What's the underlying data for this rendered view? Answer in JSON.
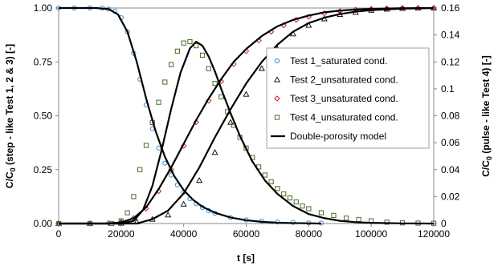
{
  "chart_data": {
    "type": "scatter",
    "xlabel": "t [s]",
    "ylabel_left": "C/C0 (step - like Test 1, 2 & 3) [-]",
    "ylabel_right": "C/C0 (pulse - like Test 4) [-]",
    "xlim": [
      0,
      120000
    ],
    "ylim_left": [
      0,
      1
    ],
    "ylim_right": [
      0,
      0.16
    ],
    "x_ticks": [
      "0",
      "20000",
      "40000",
      "60000",
      "80000",
      "100000",
      "120000"
    ],
    "y_left_ticks": [
      "0.00",
      "0.25",
      "0.50",
      "0.75",
      "1.00"
    ],
    "y_right_ticks": [
      "0",
      "0.02",
      "0.04",
      "0.06",
      "0.08",
      "0.1",
      "0.12",
      "0.14",
      "0.16"
    ],
    "grid": false,
    "legend_position": "right",
    "series": [
      {
        "name": "Test 1_saturated cond.",
        "axis": "left",
        "marker": "circle",
        "color": "#3a8fd6",
        "points": [
          [
            0,
            1.0
          ],
          [
            5000,
            1.0
          ],
          [
            10000,
            1.0
          ],
          [
            14000,
            1.0
          ],
          [
            16000,
            0.995
          ],
          [
            18000,
            0.985
          ],
          [
            20000,
            0.955
          ],
          [
            22000,
            0.89
          ],
          [
            24000,
            0.79
          ],
          [
            26000,
            0.67
          ],
          [
            28000,
            0.55
          ],
          [
            30000,
            0.44
          ],
          [
            32000,
            0.35
          ],
          [
            34000,
            0.28
          ],
          [
            36000,
            0.225
          ],
          [
            38000,
            0.18
          ],
          [
            40000,
            0.145
          ],
          [
            42000,
            0.115
          ],
          [
            44000,
            0.092
          ],
          [
            46000,
            0.074
          ],
          [
            48000,
            0.06
          ],
          [
            50000,
            0.048
          ],
          [
            55000,
            0.028
          ],
          [
            60000,
            0.017
          ],
          [
            65000,
            0.011
          ],
          [
            70000,
            0.007
          ],
          [
            75000,
            0.005
          ],
          [
            80000,
            0.003
          ],
          [
            84000,
            0.002
          ]
        ]
      },
      {
        "name": "Test 2_unsaturated cond.",
        "axis": "left",
        "marker": "triangle",
        "color": "#000000",
        "points": [
          [
            0,
            0.0
          ],
          [
            10000,
            0.0
          ],
          [
            20000,
            0.002
          ],
          [
            25000,
            0.008
          ],
          [
            30000,
            0.02
          ],
          [
            35000,
            0.04
          ],
          [
            40000,
            0.09
          ],
          [
            45000,
            0.2
          ],
          [
            50000,
            0.33
          ],
          [
            55000,
            0.47
          ],
          [
            60000,
            0.6
          ],
          [
            65000,
            0.72
          ],
          [
            70000,
            0.81
          ],
          [
            75000,
            0.88
          ],
          [
            80000,
            0.92
          ],
          [
            85000,
            0.95
          ],
          [
            90000,
            0.97
          ],
          [
            95000,
            0.98
          ],
          [
            100000,
            0.99
          ],
          [
            105000,
            0.995
          ],
          [
            110000,
            0.998
          ],
          [
            115000,
            1.0
          ],
          [
            120000,
            1.0
          ]
        ]
      },
      {
        "name": "Test 3_unsaturated cond.",
        "axis": "left",
        "marker": "diamond",
        "color": "#c0202a",
        "points": [
          [
            0,
            0.0
          ],
          [
            10000,
            0.0
          ],
          [
            16000,
            0.002
          ],
          [
            20000,
            0.008
          ],
          [
            24000,
            0.025
          ],
          [
            28000,
            0.07
          ],
          [
            32000,
            0.15
          ],
          [
            36000,
            0.25
          ],
          [
            40000,
            0.36
          ],
          [
            44000,
            0.47
          ],
          [
            48000,
            0.57
          ],
          [
            52000,
            0.66
          ],
          [
            56000,
            0.74
          ],
          [
            60000,
            0.8
          ],
          [
            64000,
            0.85
          ],
          [
            68000,
            0.89
          ],
          [
            72000,
            0.92
          ],
          [
            76000,
            0.945
          ],
          [
            80000,
            0.96
          ],
          [
            85000,
            0.975
          ],
          [
            90000,
            0.985
          ],
          [
            95000,
            0.992
          ],
          [
            100000,
            0.996
          ],
          [
            105000,
            0.998
          ],
          [
            110000,
            1.0
          ],
          [
            115000,
            1.0
          ],
          [
            120000,
            1.0
          ]
        ]
      },
      {
        "name": "Test 4_unsaturated cond.",
        "axis": "right",
        "marker": "square",
        "color": "#4a6b2a",
        "points": [
          [
            0,
            0.0
          ],
          [
            10000,
            0.0
          ],
          [
            17000,
            0.0
          ],
          [
            20000,
            0.002
          ],
          [
            22000,
            0.008
          ],
          [
            24000,
            0.02
          ],
          [
            26000,
            0.04
          ],
          [
            28000,
            0.058
          ],
          [
            30000,
            0.075
          ],
          [
            32000,
            0.09
          ],
          [
            34000,
            0.105
          ],
          [
            36000,
            0.118
          ],
          [
            38000,
            0.128
          ],
          [
            40000,
            0.134
          ],
          [
            42000,
            0.135
          ],
          [
            44000,
            0.132
          ],
          [
            46000,
            0.125
          ],
          [
            48000,
            0.115
          ],
          [
            50000,
            0.104
          ],
          [
            52000,
            0.094
          ],
          [
            54000,
            0.083
          ],
          [
            56000,
            0.073
          ],
          [
            58000,
            0.064
          ],
          [
            60000,
            0.056
          ],
          [
            62000,
            0.049
          ],
          [
            64000,
            0.042
          ],
          [
            66000,
            0.036
          ],
          [
            68000,
            0.031
          ],
          [
            70000,
            0.026
          ],
          [
            72000,
            0.022
          ],
          [
            74000,
            0.019
          ],
          [
            76000,
            0.016
          ],
          [
            78000,
            0.013
          ],
          [
            80000,
            0.011
          ],
          [
            84000,
            0.008
          ],
          [
            88000,
            0.006
          ],
          [
            92000,
            0.004
          ],
          [
            96000,
            0.003
          ],
          [
            100000,
            0.002
          ],
          [
            105000,
            0.001
          ],
          [
            110000,
            0.0005
          ],
          [
            115000,
            0.0003
          ],
          [
            120000,
            0.0002
          ]
        ]
      },
      {
        "name": "Double-porosity model",
        "type": "line",
        "lines": [
          {
            "axis": "left",
            "points": [
              [
                0,
                1.0
              ],
              [
                12000,
                1.0
              ],
              [
                16000,
                0.995
              ],
              [
                19000,
                0.97
              ],
              [
                22000,
                0.89
              ],
              [
                25000,
                0.75
              ],
              [
                28000,
                0.58
              ],
              [
                31000,
                0.43
              ],
              [
                34000,
                0.31
              ],
              [
                37000,
                0.22
              ],
              [
                40000,
                0.155
              ],
              [
                43000,
                0.11
              ],
              [
                46000,
                0.078
              ],
              [
                50000,
                0.05
              ],
              [
                55000,
                0.028
              ],
              [
                60000,
                0.015
              ],
              [
                65000,
                0.008
              ],
              [
                70000,
                0.004
              ],
              [
                75000,
                0.002
              ],
              [
                80000,
                0.001
              ],
              [
                84000,
                0.0
              ]
            ]
          },
          {
            "axis": "left",
            "points": [
              [
                0,
                0.0
              ],
              [
                15000,
                0.0
              ],
              [
                20000,
                0.005
              ],
              [
                24000,
                0.025
              ],
              [
                28000,
                0.075
              ],
              [
                32000,
                0.16
              ],
              [
                36000,
                0.26
              ],
              [
                40000,
                0.37
              ],
              [
                44000,
                0.48
              ],
              [
                48000,
                0.58
              ],
              [
                52000,
                0.67
              ],
              [
                56000,
                0.75
              ],
              [
                60000,
                0.81
              ],
              [
                65000,
                0.87
              ],
              [
                70000,
                0.915
              ],
              [
                75000,
                0.945
              ],
              [
                80000,
                0.965
              ],
              [
                85000,
                0.98
              ],
              [
                90000,
                0.988
              ],
              [
                95000,
                0.993
              ],
              [
                100000,
                0.996
              ],
              [
                110000,
                0.999
              ],
              [
                120000,
                1.0
              ]
            ]
          },
          {
            "axis": "left",
            "points": [
              [
                0,
                0.0
              ],
              [
                25000,
                0.0
              ],
              [
                30000,
                0.02
              ],
              [
                35000,
                0.06
              ],
              [
                40000,
                0.14
              ],
              [
                45000,
                0.26
              ],
              [
                50000,
                0.4
              ],
              [
                55000,
                0.53
              ],
              [
                60000,
                0.65
              ],
              [
                65000,
                0.75
              ],
              [
                70000,
                0.83
              ],
              [
                75000,
                0.89
              ],
              [
                80000,
                0.93
              ],
              [
                85000,
                0.955
              ],
              [
                90000,
                0.972
              ],
              [
                95000,
                0.983
              ],
              [
                100000,
                0.99
              ],
              [
                110000,
                0.997
              ],
              [
                120000,
                1.0
              ]
            ]
          },
          {
            "axis": "right",
            "points": [
              [
                0,
                0.0
              ],
              [
                20000,
                0.0
              ],
              [
                24000,
                0.002
              ],
              [
                27000,
                0.01
              ],
              [
                30000,
                0.028
              ],
              [
                33000,
                0.055
              ],
              [
                36000,
                0.085
              ],
              [
                39000,
                0.112
              ],
              [
                42000,
                0.13
              ],
              [
                44000,
                0.135
              ],
              [
                46000,
                0.132
              ],
              [
                48000,
                0.124
              ],
              [
                50000,
                0.113
              ],
              [
                52000,
                0.1
              ],
              [
                55000,
                0.082
              ],
              [
                58000,
                0.065
              ],
              [
                62000,
                0.046
              ],
              [
                66000,
                0.032
              ],
              [
                70000,
                0.022
              ],
              [
                75000,
                0.013
              ],
              [
                80000,
                0.007
              ],
              [
                85000,
                0.004
              ],
              [
                90000,
                0.002
              ],
              [
                95000,
                0.001
              ],
              [
                100000,
                0.0005
              ],
              [
                110000,
                0.0001
              ],
              [
                120000,
                0.0
              ]
            ]
          }
        ]
      }
    ]
  },
  "legend": [
    {
      "label": "Test 1_saturated cond.",
      "marker": "circle",
      "color": "#3a8fd6"
    },
    {
      "label": "Test 2_unsaturated cond.",
      "marker": "triangle",
      "color": "#000000"
    },
    {
      "label": "Test 3_unsaturated cond.",
      "marker": "diamond",
      "color": "#c0202a"
    },
    {
      "label": "Test 4_unsaturated cond.",
      "marker": "square",
      "color": "#4a6b2a"
    },
    {
      "label": "Double-porosity model",
      "marker": "line",
      "color": "#000000"
    }
  ]
}
